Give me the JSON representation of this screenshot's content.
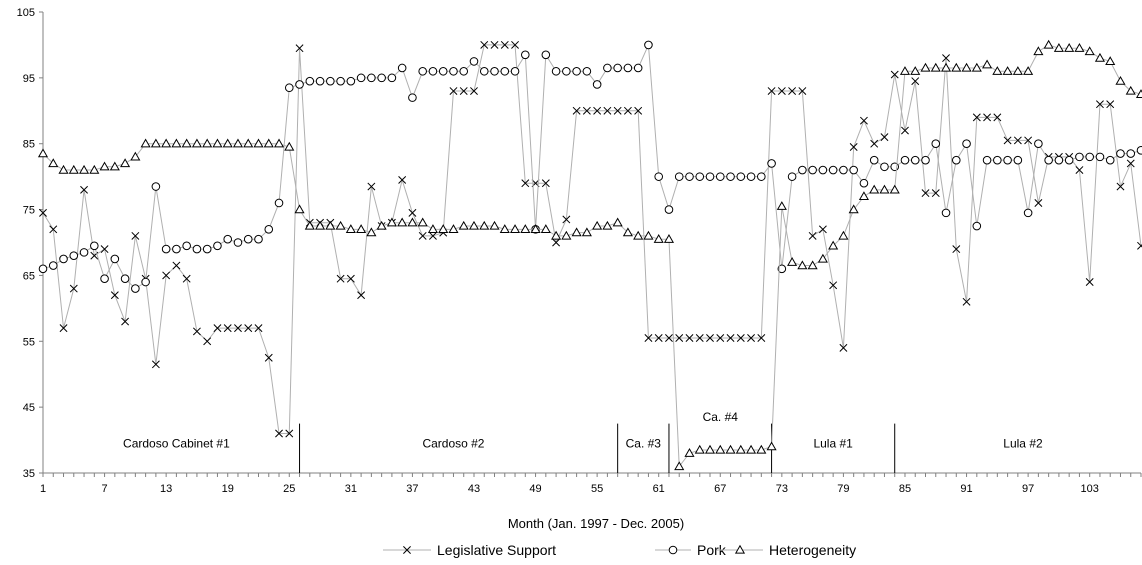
{
  "chart_data": {
    "type": "line",
    "title": "",
    "xlabel": "Month (Jan. 1997 - Dec. 2005)",
    "ylabel": "",
    "x": [
      1,
      2,
      3,
      4,
      5,
      6,
      7,
      8,
      9,
      10,
      11,
      12,
      13,
      14,
      15,
      16,
      17,
      18,
      19,
      20,
      21,
      22,
      23,
      24,
      25,
      26,
      27,
      28,
      29,
      30,
      31,
      32,
      33,
      34,
      35,
      36,
      37,
      38,
      39,
      40,
      41,
      42,
      43,
      44,
      45,
      46,
      47,
      48,
      49,
      50,
      51,
      52,
      53,
      54,
      55,
      56,
      57,
      58,
      59,
      60,
      61,
      62,
      63,
      64,
      65,
      66,
      67,
      68,
      69,
      70,
      71,
      72,
      73,
      74,
      75,
      76,
      77,
      78,
      79,
      80,
      81,
      82,
      83,
      84,
      85,
      86,
      87,
      88,
      89,
      90,
      91,
      92,
      93,
      94,
      95,
      96,
      97,
      98,
      99,
      100,
      101,
      102,
      103,
      104,
      105,
      106,
      107,
      108
    ],
    "xlim": [
      1,
      108
    ],
    "x_ticks": [
      1,
      7,
      13,
      19,
      25,
      31,
      37,
      43,
      49,
      55,
      61,
      67,
      73,
      79,
      85,
      91,
      97,
      103
    ],
    "ylim": [
      35,
      105
    ],
    "y_ticks": [
      35,
      45,
      55,
      65,
      75,
      85,
      95,
      105
    ],
    "grid": false,
    "legend_position": "bottom",
    "series": [
      {
        "name": "Legislative Support",
        "marker": "x",
        "values": [
          74.5,
          72.0,
          57.0,
          63.0,
          78.0,
          68.0,
          69.0,
          62.0,
          58.0,
          71.0,
          64.5,
          51.5,
          65.0,
          66.5,
          64.5,
          56.5,
          55.0,
          57.0,
          57.0,
          57.0,
          57.0,
          57.0,
          52.5,
          41.0,
          41.0,
          99.5,
          73.0,
          73.0,
          73.0,
          64.5,
          64.5,
          62.0,
          78.5,
          72.5,
          73.0,
          79.5,
          74.5,
          71.0,
          71.0,
          71.5,
          93.0,
          93.0,
          93.0,
          100.0,
          100.0,
          100.0,
          100.0,
          79.0,
          79.0,
          79.0,
          70.0,
          73.5,
          90.0,
          90.0,
          90.0,
          90.0,
          90.0,
          90.0,
          90.0,
          55.5,
          55.5,
          55.5,
          55.5,
          55.5,
          55.5,
          55.5,
          55.5,
          55.5,
          55.5,
          55.5,
          55.5,
          93.0,
          93.0,
          93.0,
          93.0,
          71.0,
          72.0,
          63.5,
          54.0,
          84.5,
          88.5,
          85.0,
          86.0,
          95.5,
          87.0,
          94.5,
          77.5,
          77.5,
          98.0,
          69.0,
          61.0,
          89.0,
          89.0,
          89.0,
          85.5,
          85.5,
          85.5,
          76.0,
          83.0,
          83.0,
          83.0,
          81.0,
          64.0,
          91.0,
          91.0,
          78.5,
          82.0,
          69.5
        ]
      },
      {
        "name": "Pork",
        "marker": "o",
        "values": [
          66.0,
          66.5,
          67.5,
          68.0,
          68.5,
          69.5,
          64.5,
          67.5,
          64.5,
          63.0,
          64.0,
          78.5,
          69.0,
          69.0,
          69.5,
          69.0,
          69.0,
          69.5,
          70.5,
          70.0,
          70.5,
          70.5,
          72.0,
          76.0,
          93.5,
          94.0,
          94.5,
          94.5,
          94.5,
          94.5,
          94.5,
          95.0,
          95.0,
          95.0,
          95.0,
          96.5,
          92.0,
          96.0,
          96.0,
          96.0,
          96.0,
          96.0,
          97.5,
          96.0,
          96.0,
          96.0,
          96.0,
          98.5,
          72.0,
          98.5,
          96.0,
          96.0,
          96.0,
          96.0,
          94.0,
          96.5,
          96.5,
          96.5,
          96.5,
          100.0,
          80.0,
          75.0,
          80.0,
          80.0,
          80.0,
          80.0,
          80.0,
          80.0,
          80.0,
          80.0,
          80.0,
          82.0,
          66.0,
          80.0,
          81.0,
          81.0,
          81.0,
          81.0,
          81.0,
          81.0,
          79.0,
          82.5,
          81.5,
          81.5,
          82.5,
          82.5,
          82.5,
          85.0,
          74.5,
          82.5,
          85.0,
          72.5,
          82.5,
          82.5,
          82.5,
          82.5,
          74.5,
          85.0,
          82.5,
          82.5,
          82.5,
          83.0,
          83.0,
          83.0,
          82.5,
          83.5,
          83.5,
          84.0
        ]
      },
      {
        "name": "Heterogeneity",
        "marker": "triangle",
        "values": [
          83.5,
          82.0,
          81.0,
          81.0,
          81.0,
          81.0,
          81.5,
          81.5,
          82.0,
          83.0,
          85.0,
          85.0,
          85.0,
          85.0,
          85.0,
          85.0,
          85.0,
          85.0,
          85.0,
          85.0,
          85.0,
          85.0,
          85.0,
          85.0,
          84.5,
          75.0,
          72.5,
          72.5,
          72.5,
          72.5,
          72.0,
          72.0,
          71.5,
          72.5,
          73.0,
          73.0,
          73.0,
          73.0,
          72.0,
          72.0,
          72.0,
          72.5,
          72.5,
          72.5,
          72.5,
          72.0,
          72.0,
          72.0,
          72.0,
          72.0,
          71.0,
          71.0,
          71.5,
          71.5,
          72.5,
          72.5,
          73.0,
          71.5,
          71.0,
          71.0,
          70.5,
          70.5,
          36.0,
          38.0,
          38.5,
          38.5,
          38.5,
          38.5,
          38.5,
          38.5,
          38.5,
          39.0,
          75.5,
          67.0,
          66.5,
          66.5,
          67.5,
          69.5,
          71.0,
          75.0,
          77.0,
          78.0,
          78.0,
          78.0,
          96.0,
          96.0,
          96.5,
          96.5,
          96.5,
          96.5,
          96.5,
          96.5,
          97.0,
          96.0,
          96.0,
          96.0,
          96.0,
          99.0,
          100.0,
          99.5,
          99.5,
          99.5,
          99.0,
          98.0,
          97.5,
          94.5,
          93.0,
          92.5
        ]
      }
    ],
    "period_dividers": [
      26,
      57,
      62,
      72,
      84
    ],
    "period_labels": [
      {
        "text": "Cardoso Cabinet #1",
        "x": 14,
        "y": 39.5
      },
      {
        "text": "Cardoso #2",
        "x": 41,
        "y": 39.5
      },
      {
        "text": "Ca. #3",
        "x": 59.5,
        "y": 39.5
      },
      {
        "text": "Ca. #4",
        "x": 67,
        "y": 43.5
      },
      {
        "text": "Lula #1",
        "x": 78,
        "y": 39.5
      },
      {
        "text": "Lula #2",
        "x": 96.5,
        "y": 39.5
      }
    ]
  }
}
